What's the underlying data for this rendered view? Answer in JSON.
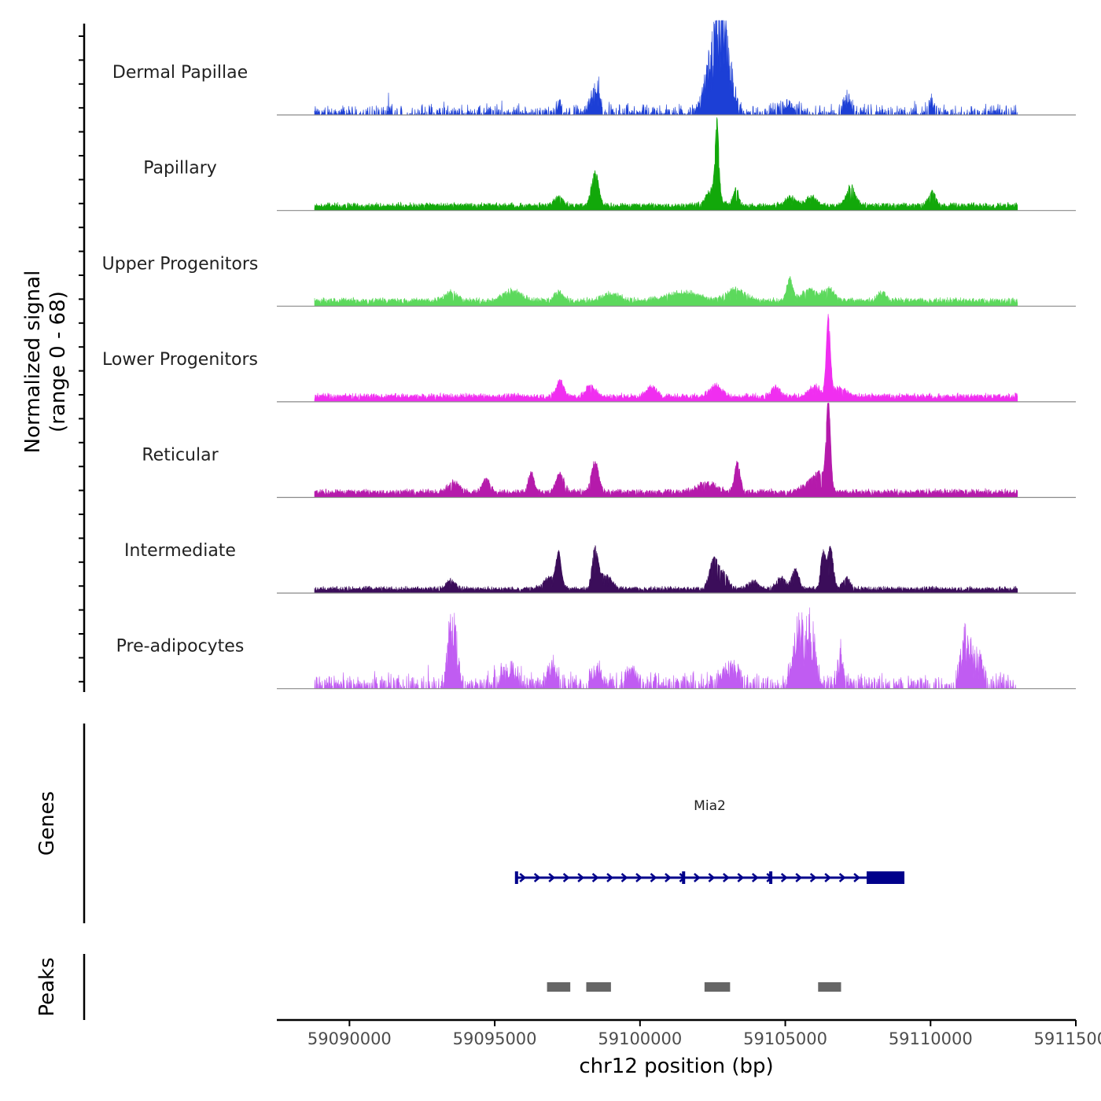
{
  "chart_data": {
    "type": "area",
    "title": "",
    "ylabel_line1": "Normalized signal",
    "ylabel_line2": "(range 0 - 68)",
    "y_range": [
      0,
      68
    ],
    "xlabel": "chr12 position (bp)",
    "xlim": [
      59087500,
      59115000
    ],
    "x_ticks": [
      59090000,
      59095000,
      59100000,
      59105000,
      59110000,
      59115000
    ],
    "x_tick_labels": [
      "59090000",
      "59095000",
      "59100000",
      "59105000",
      "59110000",
      "59115000"
    ],
    "data_extent": [
      59088800,
      59113000
    ],
    "tracks": [
      {
        "name": "Dermal Papillae",
        "color": "#1c3fd6",
        "style": "spiky",
        "baseline": 1,
        "noise": 3,
        "peaks": [
          [
            59097200,
            7,
            100
          ],
          [
            59098450,
            14,
            160
          ],
          [
            59102550,
            40,
            260
          ],
          [
            59102850,
            55,
            180
          ],
          [
            59103150,
            16,
            140
          ],
          [
            59105100,
            5,
            300
          ],
          [
            59107150,
            8,
            150
          ],
          [
            59110050,
            6,
            120
          ]
        ]
      },
      {
        "name": "Papillary",
        "color": "#12a80a",
        "style": "smooth",
        "baseline": 3,
        "noise": 2,
        "peaks": [
          [
            59097200,
            6,
            150
          ],
          [
            59098450,
            24,
            120
          ],
          [
            59102520,
            12,
            220
          ],
          [
            59102650,
            52,
            60
          ],
          [
            59103300,
            12,
            90
          ],
          [
            59105200,
            6,
            200
          ],
          [
            59105900,
            7,
            150
          ],
          [
            59107250,
            14,
            150
          ],
          [
            59110050,
            10,
            120
          ]
        ]
      },
      {
        "name": "Upper Progenitors",
        "color": "#5cd95c",
        "style": "smooth",
        "baseline": 3,
        "noise": 2.5,
        "peaks": [
          [
            59093500,
            6,
            220
          ],
          [
            59095600,
            7,
            300
          ],
          [
            59097200,
            6,
            150
          ],
          [
            59099000,
            5,
            300
          ],
          [
            59101500,
            6,
            500
          ],
          [
            59103300,
            8,
            300
          ],
          [
            59105150,
            16,
            100
          ],
          [
            59105800,
            8,
            250
          ],
          [
            59106500,
            8,
            200
          ],
          [
            59108300,
            6,
            150
          ]
        ]
      },
      {
        "name": "Lower Progenitors",
        "color": "#f02ef0",
        "style": "smooth",
        "baseline": 3,
        "noise": 2.5,
        "peaks": [
          [
            59097250,
            12,
            120
          ],
          [
            59098300,
            8,
            150
          ],
          [
            59100400,
            7,
            150
          ],
          [
            59102600,
            8,
            200
          ],
          [
            59104700,
            7,
            150
          ],
          [
            59106000,
            7,
            200
          ],
          [
            59106480,
            54,
            70
          ],
          [
            59106800,
            6,
            250
          ]
        ]
      },
      {
        "name": "Reticular",
        "color": "#b51aab",
        "style": "smooth",
        "baseline": 3,
        "noise": 2.5,
        "peaks": [
          [
            59093600,
            7,
            200
          ],
          [
            59094700,
            10,
            120
          ],
          [
            59096250,
            14,
            100
          ],
          [
            59097250,
            14,
            130
          ],
          [
            59098450,
            22,
            120
          ],
          [
            59102300,
            7,
            300
          ],
          [
            59103350,
            22,
            90
          ],
          [
            59105900,
            8,
            250
          ],
          [
            59106480,
            65,
            75
          ],
          [
            59106200,
            10,
            150
          ]
        ]
      },
      {
        "name": "Intermediate",
        "color": "#3b0d5a",
        "style": "smooth",
        "baseline": 2,
        "noise": 2.5,
        "peaks": [
          [
            59093500,
            6,
            150
          ],
          [
            59096900,
            8,
            200
          ],
          [
            59097200,
            24,
            90
          ],
          [
            59098450,
            28,
            100
          ],
          [
            59098800,
            10,
            200
          ],
          [
            59102550,
            22,
            150
          ],
          [
            59102900,
            10,
            150
          ],
          [
            59103900,
            6,
            150
          ],
          [
            59104850,
            8,
            150
          ],
          [
            59105350,
            14,
            120
          ],
          [
            59106300,
            26,
            80
          ],
          [
            59106550,
            30,
            100
          ],
          [
            59107100,
            8,
            120
          ]
        ]
      },
      {
        "name": "Pre-adipocytes",
        "color": "#c05cf2",
        "style": "sparse",
        "baseline": 4,
        "noise": 3,
        "peaks": [
          [
            59093550,
            48,
            130
          ],
          [
            59095500,
            8,
            300
          ],
          [
            59097000,
            12,
            150
          ],
          [
            59098500,
            8,
            200
          ],
          [
            59099700,
            8,
            200
          ],
          [
            59103100,
            8,
            300
          ],
          [
            59105500,
            38,
            200
          ],
          [
            59105900,
            30,
            150
          ],
          [
            59106900,
            22,
            80
          ],
          [
            59111200,
            30,
            150
          ],
          [
            59111600,
            14,
            200
          ]
        ]
      }
    ],
    "genes": {
      "label": "Genes",
      "items": [
        {
          "name": "Mia2",
          "start": 59095700,
          "end": 59109100,
          "strand": "+",
          "utr_start": 59107800,
          "exons": [
            59095750,
            59101500,
            59104500
          ]
        }
      ]
    },
    "peaks": {
      "label": "Peaks",
      "regions": [
        [
          59096800,
          59097600
        ],
        [
          59098150,
          59099000
        ],
        [
          59102220,
          59103100
        ],
        [
          59106130,
          59106920
        ]
      ]
    }
  }
}
